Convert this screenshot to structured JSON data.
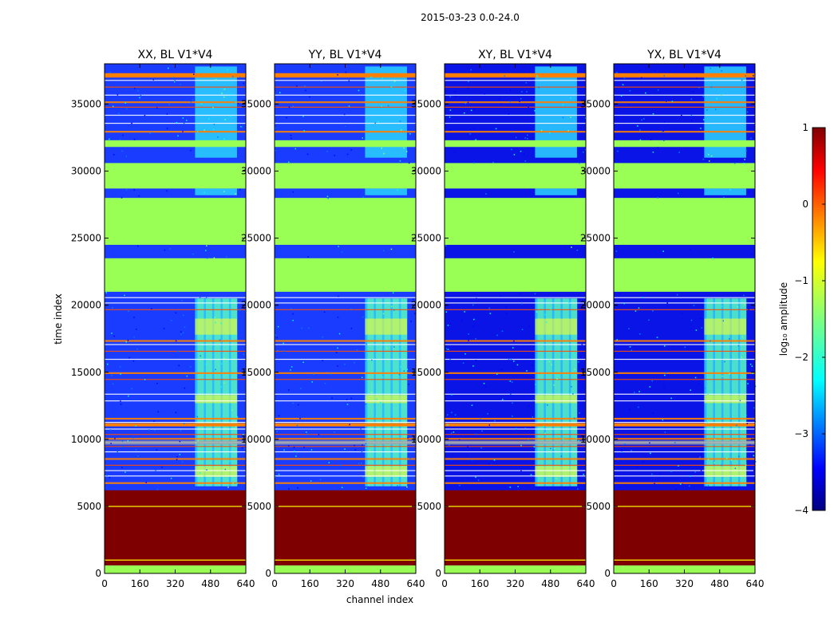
{
  "figure_title": "2015-03-23 0.0-24.0",
  "colors": {
    "jet": [
      "#00007f",
      "#0000ff",
      "#007fff",
      "#00ffff",
      "#7fff7f",
      "#ffff00",
      "#ff7f00",
      "#ff0000",
      "#7f0000"
    ],
    "flagged": "#99ff55",
    "grid_line": "#ffff00",
    "orange_line": "#ff7f00"
  },
  "chart_data": {
    "type": "heatmap",
    "title": "2015-03-23 0.0-24.0",
    "xlabel": "channel index",
    "ylabel": "time index",
    "xlim": [
      0,
      640
    ],
    "ylim": [
      0,
      38000
    ],
    "xticks": [
      "0",
      "160",
      "320",
      "480",
      "640"
    ],
    "yticks": [
      "0",
      "5000",
      "10000",
      "15000",
      "20000",
      "25000",
      "30000",
      "35000"
    ],
    "xtick_values": [
      0,
      160,
      320,
      480,
      640
    ],
    "ytick_values": [
      0,
      5000,
      10000,
      15000,
      20000,
      25000,
      30000,
      35000
    ],
    "panels": [
      {
        "title": "XX, BL V1*V4",
        "pol": "XX",
        "background_log_amp": -2.9
      },
      {
        "title": "YY, BL V1*V4",
        "pol": "YY",
        "background_log_amp": -2.9
      },
      {
        "title": "XY, BL V1*V4",
        "pol": "XY",
        "background_log_amp": -3.4
      },
      {
        "title": "YX, BL V1*V4",
        "pol": "YX",
        "background_log_amp": -3.4
      }
    ],
    "flagged_time_ranges": [
      [
        0,
        600
      ],
      [
        21000,
        23500
      ],
      [
        24500,
        28000
      ],
      [
        28700,
        30600
      ],
      [
        31800,
        32300
      ]
    ],
    "saturated_time_range": [
      600,
      6200
    ],
    "rfi_channel_range": [
      410,
      600
    ],
    "colorbar": {
      "label": "log₁₀ amplitude",
      "vmin": -4,
      "vmax": 1,
      "ticks": [
        "1",
        "0",
        "−1",
        "−2",
        "−3",
        "−4"
      ],
      "tick_values": [
        1,
        0,
        -1,
        -2,
        -3,
        -4
      ]
    }
  }
}
